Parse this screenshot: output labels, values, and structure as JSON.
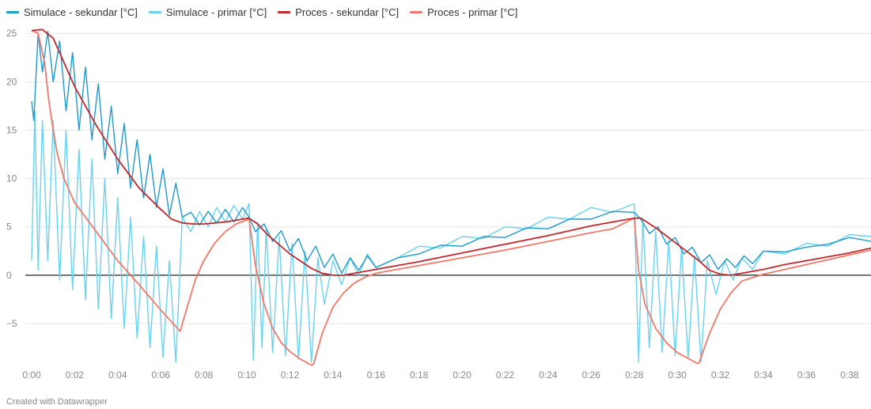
{
  "legend": [
    {
      "label": "Simulace - sekundar [°C]",
      "color": "#1f9ac9"
    },
    {
      "label": "Simulace - primar [°C]",
      "color": "#69d2ef"
    },
    {
      "label": "Proces - sekundar [°C]",
      "color": "#c1272d"
    },
    {
      "label": "Proces - primar [°C]",
      "color": "#f2786b"
    }
  ],
  "footer": "Created with Datawrapper",
  "chart_data": {
    "type": "line",
    "xlabel": "",
    "ylabel": "",
    "x_unit": "minutes",
    "xlim": [
      0,
      39
    ],
    "ylim": [
      -9.5,
      26
    ],
    "y_ticks": [
      -5,
      0,
      5,
      10,
      15,
      20,
      25
    ],
    "x_ticks": [
      "0:00",
      "0:02",
      "0:04",
      "0:06",
      "0:08",
      "0:10",
      "0:12",
      "0:14",
      "0:16",
      "0:18",
      "0:20",
      "0:22",
      "0:24",
      "0:26",
      "0:28",
      "0:30",
      "0:32",
      "0:34",
      "0:36",
      "0:38"
    ],
    "grid": true,
    "legend_position": "top-left",
    "series": [
      {
        "name": "Proces - sekundar [°C]",
        "color": "#c1272d",
        "x": [
          0,
          0.5,
          1,
          1.5,
          2,
          3,
          4,
          5,
          6,
          6.5,
          7,
          7.5,
          8,
          9,
          10.1,
          10.5,
          11,
          12,
          13,
          13.5,
          14,
          14.5,
          15,
          16,
          18,
          20,
          22,
          24,
          26,
          27,
          28,
          28.3,
          29,
          30,
          31,
          31.5,
          32,
          32.5,
          33,
          34,
          35,
          36,
          37,
          38,
          39
        ],
        "y": [
          25.3,
          25.4,
          24.5,
          22,
          19.5,
          15.5,
          12,
          9,
          6.8,
          5.8,
          5.4,
          5.3,
          5.3,
          5.5,
          5.9,
          5.3,
          4.1,
          2.2,
          0.7,
          0.2,
          0,
          0,
          0.2,
          0.6,
          1.4,
          2.3,
          3.2,
          4.1,
          5.1,
          5.5,
          5.9,
          5.9,
          4.9,
          3.2,
          1.5,
          0.5,
          0.1,
          0,
          0.2,
          0.6,
          1.1,
          1.5,
          1.9,
          2.3,
          2.8
        ]
      },
      {
        "name": "Proces - primar [°C]",
        "color": "#f2786b",
        "x": [
          0,
          0.3,
          0.6,
          0.8,
          1,
          1.2,
          1.5,
          2,
          3,
          4,
          5,
          6,
          6.9,
          7.2,
          7.6,
          8,
          8.5,
          9,
          9.5,
          10.1,
          10.4,
          10.8,
          11.2,
          11.6,
          12,
          12.5,
          13,
          13.1,
          13.5,
          14,
          14.5,
          15,
          15.5,
          16,
          17,
          18,
          20,
          22,
          24,
          26,
          27,
          28,
          28.2,
          28.5,
          29,
          29.5,
          30,
          30.5,
          30.9,
          31,
          31.5,
          32,
          32.5,
          33,
          34,
          35,
          36,
          37,
          38,
          39
        ],
        "y": [
          25.3,
          25,
          22,
          18,
          15,
          12.5,
          10,
          7.5,
          4.5,
          1.5,
          -1,
          -3.6,
          -5.8,
          -3.5,
          -0.5,
          1.5,
          3.3,
          4.5,
          5.3,
          5.8,
          1,
          -3,
          -5.5,
          -7,
          -7.9,
          -8.7,
          -9.3,
          -9.2,
          -6,
          -3.3,
          -1.8,
          -0.8,
          -0.2,
          0.2,
          0.6,
          1,
          1.8,
          2.6,
          3.5,
          4.4,
          4.8,
          5.9,
          0.5,
          -3,
          -5.5,
          -7,
          -8,
          -8.6,
          -9.1,
          -9.1,
          -6,
          -3.5,
          -1.8,
          -0.6,
          0.1,
          0.6,
          1.1,
          1.6,
          2.1,
          2.6
        ]
      },
      {
        "name": "Simulace - sekundar [°C]",
        "color": "#1f9ac9",
        "x": [
          0,
          0.1,
          0.3,
          0.5,
          0.75,
          1,
          1.3,
          1.6,
          1.9,
          2.2,
          2.5,
          2.8,
          3.1,
          3.4,
          3.7,
          4,
          4.3,
          4.6,
          4.9,
          5.2,
          5.5,
          5.8,
          6.1,
          6.4,
          6.7,
          7,
          7.4,
          7.8,
          8.2,
          8.6,
          9,
          9.4,
          9.8,
          10.1,
          10.4,
          10.8,
          11.2,
          11.6,
          12,
          12.4,
          12.8,
          13.2,
          13.6,
          14,
          14.4,
          14.8,
          15.2,
          15.6,
          16,
          17,
          18,
          19,
          20,
          21,
          22,
          23,
          24,
          25,
          26,
          27,
          28,
          28.3,
          28.7,
          29.1,
          29.5,
          29.9,
          30.3,
          30.7,
          31.1,
          31.5,
          31.9,
          32.3,
          32.7,
          33.1,
          33.5,
          34,
          35,
          36,
          37,
          38,
          39
        ],
        "y": [
          18,
          16,
          25,
          21,
          25.2,
          20,
          24.2,
          17,
          23,
          15,
          21.5,
          14,
          19.8,
          12,
          17.5,
          10.5,
          15.7,
          9,
          14,
          8,
          12.5,
          7,
          11,
          6.2,
          9.5,
          6,
          6.5,
          5.2,
          6.6,
          5.4,
          6.8,
          5.5,
          7,
          6,
          4.5,
          5.3,
          3.5,
          4.6,
          2.5,
          3.8,
          1.5,
          3,
          0.8,
          2.2,
          0.2,
          1.8,
          0.5,
          2,
          0.8,
          1.8,
          2.2,
          3.1,
          3,
          4,
          3.9,
          4.9,
          4.8,
          5.8,
          5.8,
          6.6,
          6.5,
          5.8,
          4.3,
          5,
          3.2,
          3.9,
          2.2,
          2.9,
          1.3,
          2.1,
          0.6,
          1.7,
          0.8,
          2,
          1.2,
          2.5,
          2.4,
          2.9,
          3.2,
          3.9,
          3.5
        ]
      },
      {
        "name": "Simulace - primar [°C]",
        "color": "#69d2ef",
        "x": [
          0,
          0.15,
          0.3,
          0.5,
          0.75,
          1,
          1.3,
          1.6,
          1.9,
          2.2,
          2.5,
          2.8,
          3.1,
          3.4,
          3.7,
          4,
          4.3,
          4.6,
          4.9,
          5.2,
          5.5,
          5.8,
          6.1,
          6.4,
          6.7,
          7,
          7.4,
          7.8,
          8.2,
          8.6,
          9,
          9.4,
          9.8,
          10.1,
          10.3,
          10.5,
          10.7,
          10.9,
          11.2,
          11.5,
          11.8,
          12.1,
          12.4,
          12.7,
          13,
          13.3,
          13.6,
          14,
          14.4,
          14.8,
          15.2,
          15.6,
          16,
          17,
          18,
          19,
          20,
          21,
          22,
          23,
          24,
          25,
          26,
          27,
          28,
          28.2,
          28.4,
          28.7,
          29,
          29.3,
          29.6,
          29.9,
          30.2,
          30.5,
          30.8,
          31.1,
          31.4,
          31.8,
          32.2,
          32.6,
          33,
          33.5,
          34,
          35,
          36,
          37,
          38,
          39
        ],
        "y": [
          1.5,
          17,
          0.5,
          16,
          1.5,
          16,
          -0.5,
          15,
          -1.5,
          13,
          -2.5,
          12,
          -3.5,
          10,
          -4.5,
          8,
          -5.5,
          6,
          -6.5,
          4,
          -7.5,
          3,
          -8.5,
          1.5,
          -9,
          6,
          4.5,
          6.6,
          5,
          7,
          5.5,
          7.2,
          5.8,
          7.4,
          -8.8,
          5.5,
          -7.5,
          4.8,
          -8,
          4,
          -8.3,
          3.3,
          -8.7,
          2.5,
          -9,
          1.8,
          -3,
          1.5,
          -1,
          1.8,
          0,
          2.2,
          0.8,
          1.8,
          3,
          2.8,
          4,
          3.8,
          5,
          4.8,
          6,
          5.8,
          7,
          6.5,
          7.4,
          -9,
          5.8,
          -7.5,
          4.5,
          -8,
          3.6,
          -8.3,
          2.8,
          -8.6,
          2,
          -9,
          1.5,
          -2,
          1.5,
          -0.5,
          1.8,
          0.6,
          2.5,
          2.2,
          3.3,
          3,
          4.2,
          4
        ]
      }
    ]
  }
}
